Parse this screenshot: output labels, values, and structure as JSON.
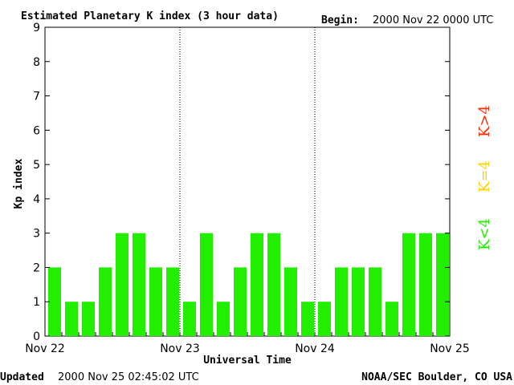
{
  "title": "Estimated Planetary K index (3 hour data)",
  "begin_label": "Begin:",
  "begin_value": "2000 Nov 22 0000 UTC",
  "ylabel": "Kp index",
  "xlabel": "Universal Time",
  "updated_label": "Updated",
  "updated_value": "2000 Nov 25 02:45:02 UTC",
  "source": "NOAA/SEC Boulder, CO USA",
  "legend": [
    {
      "label": "K>4",
      "color": "#ff2a00"
    },
    {
      "label": "K=4",
      "color": "#ffd200"
    },
    {
      "label": "K<4",
      "color": "#22ee00"
    }
  ],
  "colors": {
    "bar": "#22ee00",
    "axis": "#000000"
  },
  "chart_data": {
    "type": "bar",
    "title": "Estimated Planetary K index (3 hour data)",
    "xlabel": "Universal Time",
    "ylabel": "Kp index",
    "ylim": [
      0,
      9
    ],
    "yticks": [
      0,
      1,
      2,
      3,
      4,
      5,
      6,
      7,
      8,
      9
    ],
    "x_tick_labels": [
      "Nov 22",
      "Nov 23",
      "Nov 24",
      "Nov 25"
    ],
    "grid": "dotted vertical lines at day boundaries",
    "categories": [
      "Nov 22 00",
      "Nov 22 03",
      "Nov 22 06",
      "Nov 22 09",
      "Nov 22 12",
      "Nov 22 15",
      "Nov 22 18",
      "Nov 22 21",
      "Nov 23 00",
      "Nov 23 03",
      "Nov 23 06",
      "Nov 23 09",
      "Nov 23 12",
      "Nov 23 15",
      "Nov 23 18",
      "Nov 23 21",
      "Nov 24 00",
      "Nov 24 03",
      "Nov 24 06",
      "Nov 24 09",
      "Nov 24 12",
      "Nov 24 15",
      "Nov 24 18",
      "Nov 24 21"
    ],
    "values": [
      2,
      1,
      1,
      2,
      3,
      3,
      2,
      2,
      1,
      3,
      1,
      2,
      3,
      3,
      2,
      1,
      1,
      2,
      2,
      2,
      1,
      3,
      3,
      3
    ]
  }
}
